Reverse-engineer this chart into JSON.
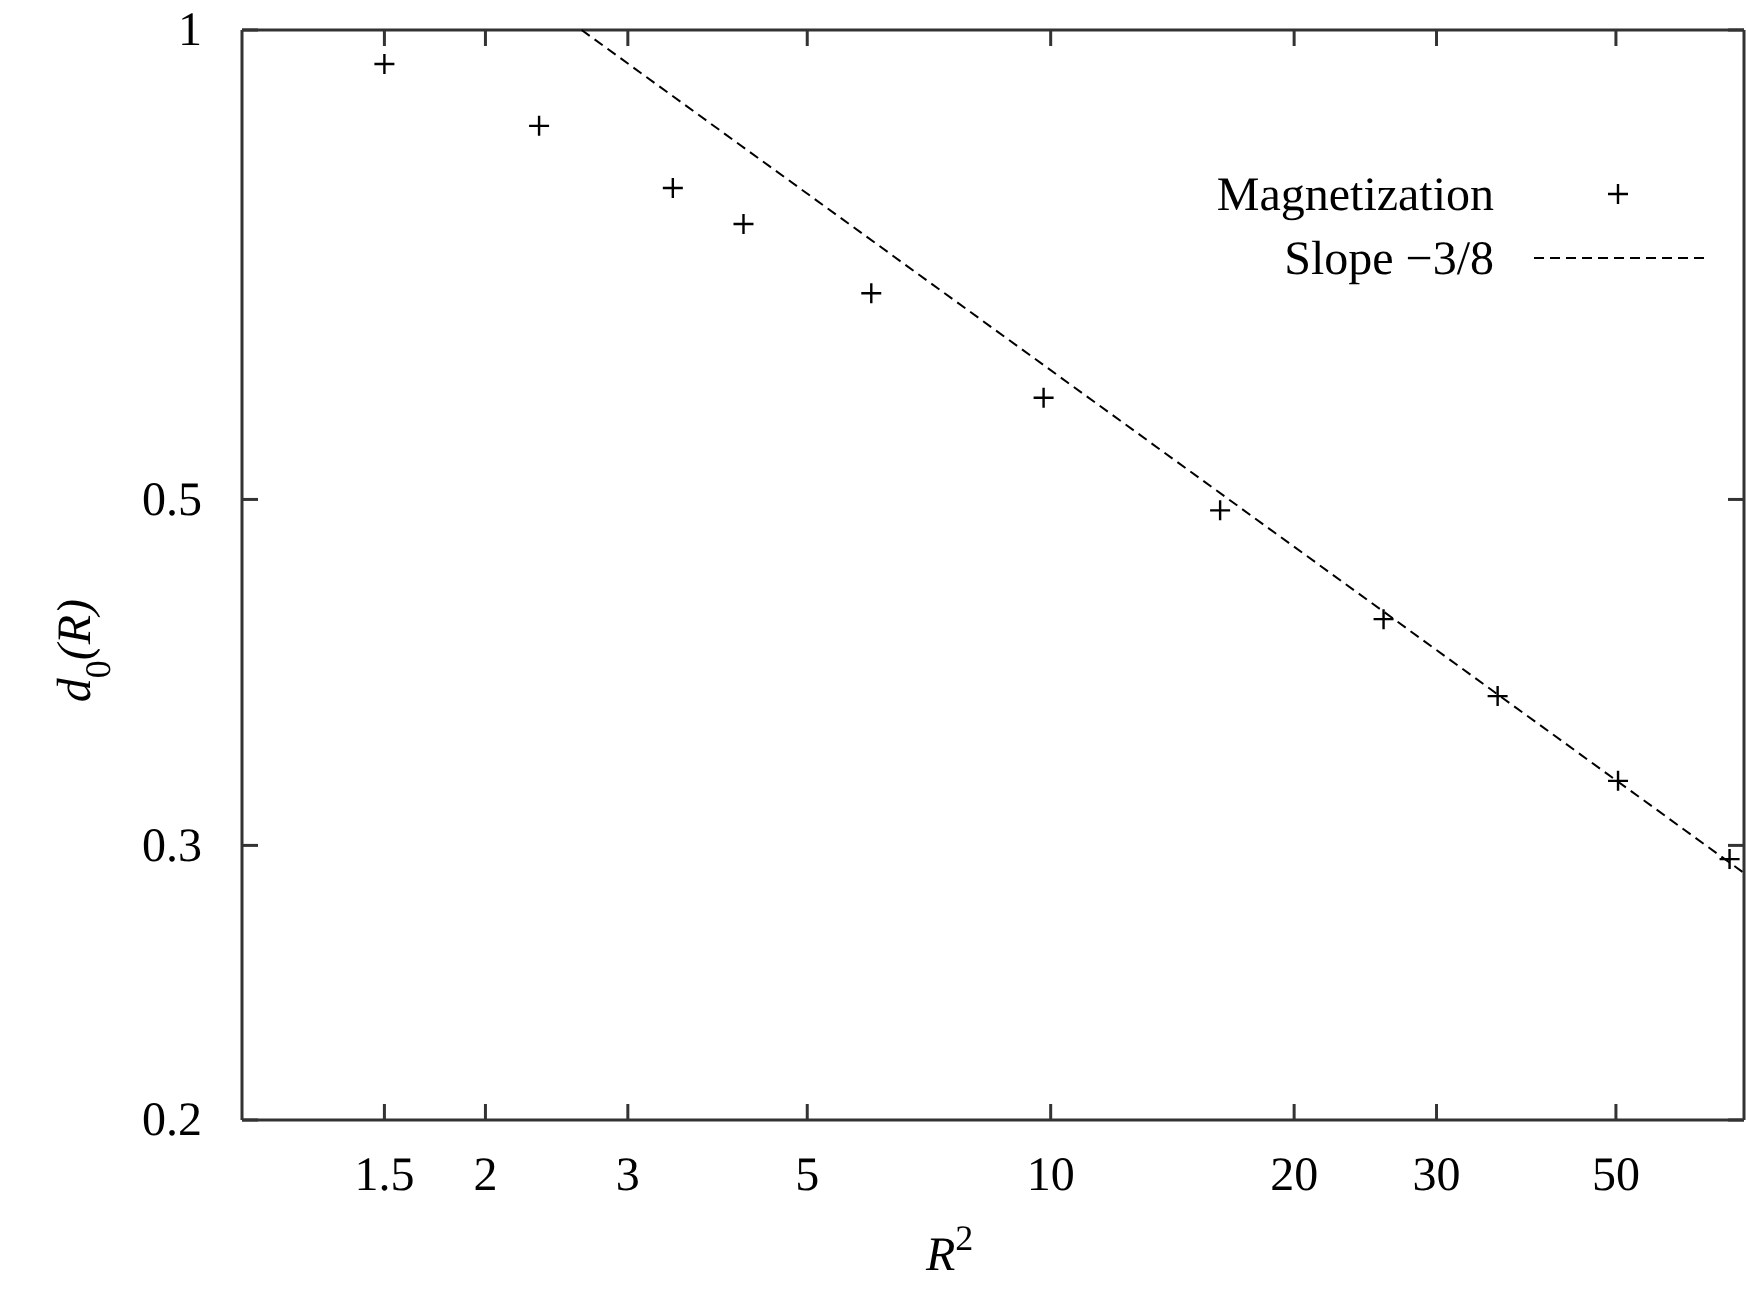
{
  "chart_data": {
    "type": "scatter",
    "xlabel": "R$^{2}$",
    "ylabel": "d$_{0}$(R)",
    "log": "xy",
    "xlim": [
      1,
      72
    ],
    "xticks": [
      1.5,
      2,
      3,
      5,
      10,
      20,
      30,
      50
    ],
    "ylim": [
      0.2,
      1
    ],
    "yticks": [
      0.2,
      0.3,
      0.5,
      1
    ],
    "legend": "top right",
    "grid": false,
    "series": [
      {
        "name": "Magnetization",
        "marker": "cross",
        "color": "#000000",
        "x": [
          1.5,
          2.33,
          3.41,
          4.17,
          6.0,
          9.8,
          16.2,
          25.8,
          35.7,
          50.3,
          69.1
        ],
        "values": [
          0.951,
          0.868,
          0.792,
          0.751,
          0.678,
          0.581,
          0.492,
          0.419,
          0.374,
          0.33,
          0.294
        ]
      },
      {
        "name": "Slope −3/8",
        "type": "line",
        "line_style": "dashed",
        "color": "#000000",
        "x": [
          2.63,
          72
        ],
        "values": [
          1,
          0.288
        ]
      }
    ]
  }
}
